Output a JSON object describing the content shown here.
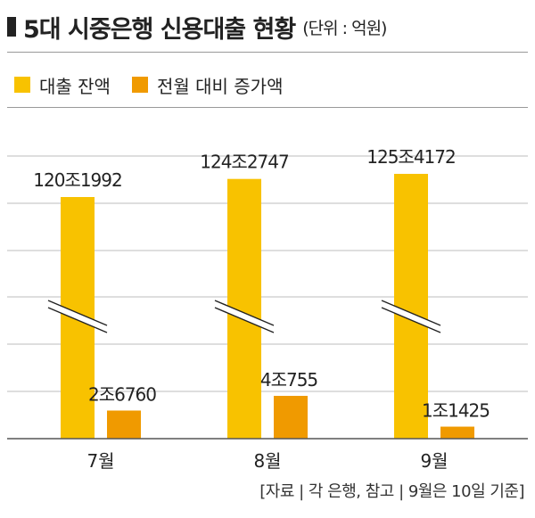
{
  "header": {
    "title": "5대 시중은행 신용대출 현황",
    "unit": "(단위 : 억원)"
  },
  "legend": [
    {
      "label": "대출 잔액",
      "color": "#f8c200"
    },
    {
      "label": "전월 대비 증가액",
      "color": "#f09a00"
    }
  ],
  "source": "[자료 | 각 은행, 참고 | 9월은 10일 기준]",
  "chart_data": {
    "type": "bar",
    "title": "5대 시중은행 신용대출 현황",
    "unit": "(단위 : 억원)",
    "categories": [
      "7월",
      "8월",
      "9월"
    ],
    "series": [
      {
        "name": "대출 잔액",
        "color": "#f8c200",
        "values": [
          1201992,
          1242747,
          1254172
        ],
        "labels": [
          "120조1992",
          "124조2747",
          "125조4172"
        ]
      },
      {
        "name": "전월 대비 증가액",
        "color": "#f09a00",
        "values": [
          26760,
          40755,
          11425
        ],
        "labels": [
          "2조6760",
          "4조755",
          "1조1425"
        ]
      }
    ],
    "axis_break": true,
    "grid": true,
    "legend_position": "top-left"
  }
}
